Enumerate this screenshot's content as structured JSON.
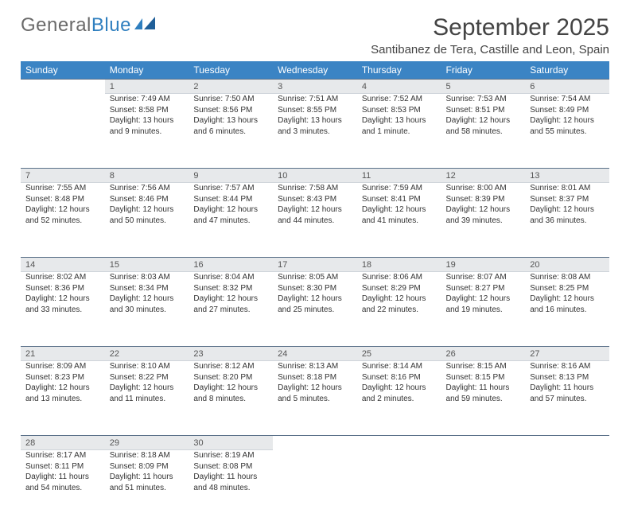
{
  "brand": {
    "part1": "General",
    "part2": "Blue"
  },
  "title": "September 2025",
  "location": "Santibanez de Tera, Castille and Leon, Spain",
  "colors": {
    "header_bg": "#3b84c4",
    "daynum_bg": "#e7e9eb",
    "rule": "#5a7088",
    "text": "#333333",
    "logo_gray": "#6a6a6a",
    "logo_blue": "#2f7fbf"
  },
  "dow": [
    "Sunday",
    "Monday",
    "Tuesday",
    "Wednesday",
    "Thursday",
    "Friday",
    "Saturday"
  ],
  "weeks": [
    {
      "nums": [
        "",
        "1",
        "2",
        "3",
        "4",
        "5",
        "6"
      ],
      "cells": [
        null,
        {
          "sr": "Sunrise: 7:49 AM",
          "ss": "Sunset: 8:58 PM",
          "d1": "Daylight: 13 hours",
          "d2": "and 9 minutes."
        },
        {
          "sr": "Sunrise: 7:50 AM",
          "ss": "Sunset: 8:56 PM",
          "d1": "Daylight: 13 hours",
          "d2": "and 6 minutes."
        },
        {
          "sr": "Sunrise: 7:51 AM",
          "ss": "Sunset: 8:55 PM",
          "d1": "Daylight: 13 hours",
          "d2": "and 3 minutes."
        },
        {
          "sr": "Sunrise: 7:52 AM",
          "ss": "Sunset: 8:53 PM",
          "d1": "Daylight: 13 hours",
          "d2": "and 1 minute."
        },
        {
          "sr": "Sunrise: 7:53 AM",
          "ss": "Sunset: 8:51 PM",
          "d1": "Daylight: 12 hours",
          "d2": "and 58 minutes."
        },
        {
          "sr": "Sunrise: 7:54 AM",
          "ss": "Sunset: 8:49 PM",
          "d1": "Daylight: 12 hours",
          "d2": "and 55 minutes."
        }
      ]
    },
    {
      "nums": [
        "7",
        "8",
        "9",
        "10",
        "11",
        "12",
        "13"
      ],
      "cells": [
        {
          "sr": "Sunrise: 7:55 AM",
          "ss": "Sunset: 8:48 PM",
          "d1": "Daylight: 12 hours",
          "d2": "and 52 minutes."
        },
        {
          "sr": "Sunrise: 7:56 AM",
          "ss": "Sunset: 8:46 PM",
          "d1": "Daylight: 12 hours",
          "d2": "and 50 minutes."
        },
        {
          "sr": "Sunrise: 7:57 AM",
          "ss": "Sunset: 8:44 PM",
          "d1": "Daylight: 12 hours",
          "d2": "and 47 minutes."
        },
        {
          "sr": "Sunrise: 7:58 AM",
          "ss": "Sunset: 8:43 PM",
          "d1": "Daylight: 12 hours",
          "d2": "and 44 minutes."
        },
        {
          "sr": "Sunrise: 7:59 AM",
          "ss": "Sunset: 8:41 PM",
          "d1": "Daylight: 12 hours",
          "d2": "and 41 minutes."
        },
        {
          "sr": "Sunrise: 8:00 AM",
          "ss": "Sunset: 8:39 PM",
          "d1": "Daylight: 12 hours",
          "d2": "and 39 minutes."
        },
        {
          "sr": "Sunrise: 8:01 AM",
          "ss": "Sunset: 8:37 PM",
          "d1": "Daylight: 12 hours",
          "d2": "and 36 minutes."
        }
      ]
    },
    {
      "nums": [
        "14",
        "15",
        "16",
        "17",
        "18",
        "19",
        "20"
      ],
      "cells": [
        {
          "sr": "Sunrise: 8:02 AM",
          "ss": "Sunset: 8:36 PM",
          "d1": "Daylight: 12 hours",
          "d2": "and 33 minutes."
        },
        {
          "sr": "Sunrise: 8:03 AM",
          "ss": "Sunset: 8:34 PM",
          "d1": "Daylight: 12 hours",
          "d2": "and 30 minutes."
        },
        {
          "sr": "Sunrise: 8:04 AM",
          "ss": "Sunset: 8:32 PM",
          "d1": "Daylight: 12 hours",
          "d2": "and 27 minutes."
        },
        {
          "sr": "Sunrise: 8:05 AM",
          "ss": "Sunset: 8:30 PM",
          "d1": "Daylight: 12 hours",
          "d2": "and 25 minutes."
        },
        {
          "sr": "Sunrise: 8:06 AM",
          "ss": "Sunset: 8:29 PM",
          "d1": "Daylight: 12 hours",
          "d2": "and 22 minutes."
        },
        {
          "sr": "Sunrise: 8:07 AM",
          "ss": "Sunset: 8:27 PM",
          "d1": "Daylight: 12 hours",
          "d2": "and 19 minutes."
        },
        {
          "sr": "Sunrise: 8:08 AM",
          "ss": "Sunset: 8:25 PM",
          "d1": "Daylight: 12 hours",
          "d2": "and 16 minutes."
        }
      ]
    },
    {
      "nums": [
        "21",
        "22",
        "23",
        "24",
        "25",
        "26",
        "27"
      ],
      "cells": [
        {
          "sr": "Sunrise: 8:09 AM",
          "ss": "Sunset: 8:23 PM",
          "d1": "Daylight: 12 hours",
          "d2": "and 13 minutes."
        },
        {
          "sr": "Sunrise: 8:10 AM",
          "ss": "Sunset: 8:22 PM",
          "d1": "Daylight: 12 hours",
          "d2": "and 11 minutes."
        },
        {
          "sr": "Sunrise: 8:12 AM",
          "ss": "Sunset: 8:20 PM",
          "d1": "Daylight: 12 hours",
          "d2": "and 8 minutes."
        },
        {
          "sr": "Sunrise: 8:13 AM",
          "ss": "Sunset: 8:18 PM",
          "d1": "Daylight: 12 hours",
          "d2": "and 5 minutes."
        },
        {
          "sr": "Sunrise: 8:14 AM",
          "ss": "Sunset: 8:16 PM",
          "d1": "Daylight: 12 hours",
          "d2": "and 2 minutes."
        },
        {
          "sr": "Sunrise: 8:15 AM",
          "ss": "Sunset: 8:15 PM",
          "d1": "Daylight: 11 hours",
          "d2": "and 59 minutes."
        },
        {
          "sr": "Sunrise: 8:16 AM",
          "ss": "Sunset: 8:13 PM",
          "d1": "Daylight: 11 hours",
          "d2": "and 57 minutes."
        }
      ]
    },
    {
      "nums": [
        "28",
        "29",
        "30",
        "",
        "",
        "",
        ""
      ],
      "cells": [
        {
          "sr": "Sunrise: 8:17 AM",
          "ss": "Sunset: 8:11 PM",
          "d1": "Daylight: 11 hours",
          "d2": "and 54 minutes."
        },
        {
          "sr": "Sunrise: 8:18 AM",
          "ss": "Sunset: 8:09 PM",
          "d1": "Daylight: 11 hours",
          "d2": "and 51 minutes."
        },
        {
          "sr": "Sunrise: 8:19 AM",
          "ss": "Sunset: 8:08 PM",
          "d1": "Daylight: 11 hours",
          "d2": "and 48 minutes."
        },
        null,
        null,
        null,
        null
      ]
    }
  ]
}
